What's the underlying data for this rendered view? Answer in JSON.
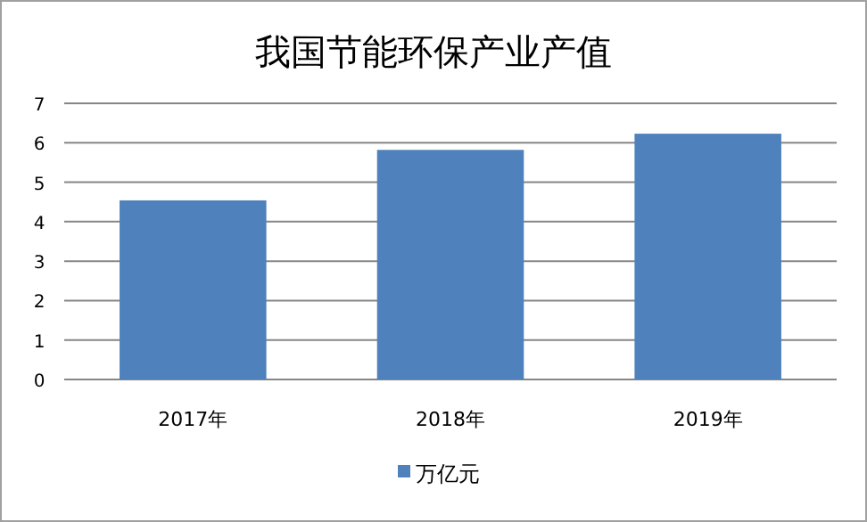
{
  "chart_data": {
    "type": "bar",
    "title": "我国节能环保产业产值",
    "categories": [
      "2017年",
      "2018年",
      "2019年"
    ],
    "series": [
      {
        "name": "万亿元",
        "color": "#4f81bd",
        "values": [
          4.54,
          5.82,
          6.23
        ]
      }
    ],
    "ylim": [
      0,
      7
    ],
    "yticks": [
      0,
      1,
      2,
      3,
      4,
      5,
      6,
      7
    ],
    "grid": "y",
    "legend": "bottom"
  }
}
